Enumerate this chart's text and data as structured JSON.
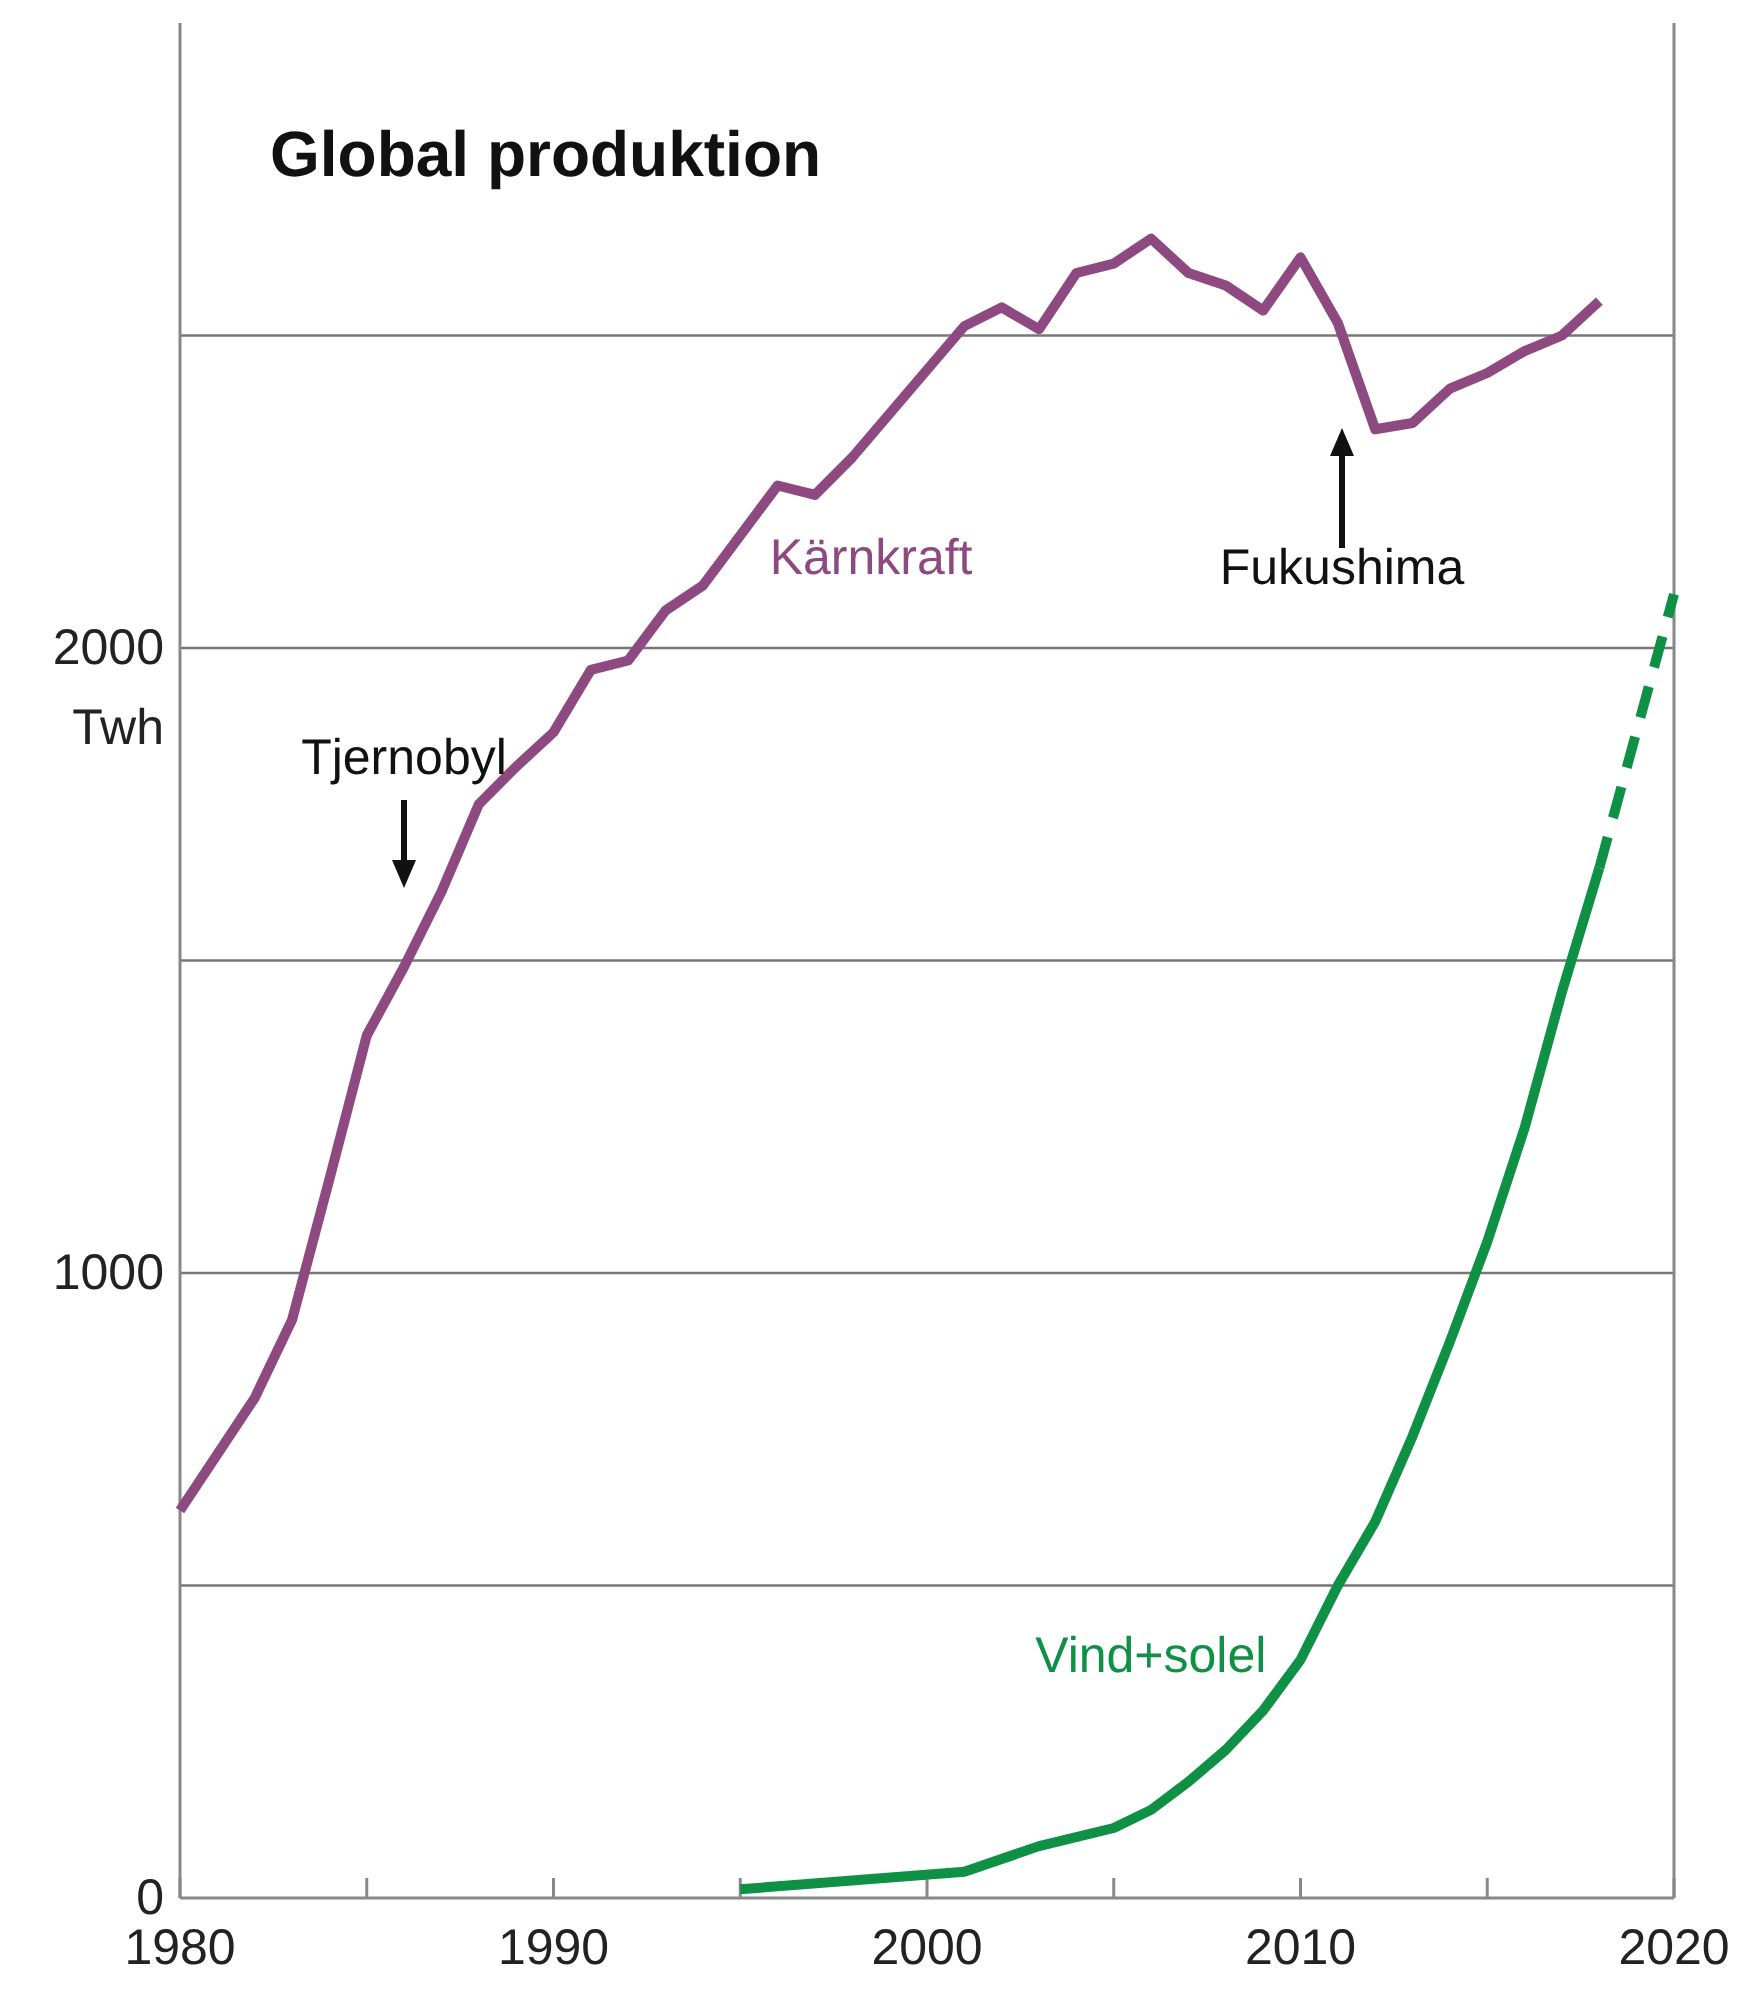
{
  "chart_data": {
    "type": "line",
    "title": "Global produktion",
    "ylabel": "Twh",
    "xlim": [
      1980,
      2020
    ],
    "xticks": [
      1980,
      {
        "value": 1985,
        "label": null
      },
      1990,
      {
        "value": 1995,
        "label": null
      },
      2000,
      {
        "value": 2005,
        "label": null
      },
      2010,
      {
        "value": 2015,
        "label": null
      },
      2020
    ],
    "ylim": [
      0,
      3000
    ],
    "yticks": [
      0,
      {
        "value": 500,
        "label": null
      },
      1000,
      {
        "value": 1500,
        "label": null
      },
      2000,
      {
        "value": 2500,
        "label": null
      }
    ],
    "grid": "y",
    "marker": "none",
    "series": [
      {
        "name": "Kärnkraft",
        "color": "#8e4a80",
        "line_style": "solid",
        "x": [
          1980,
          1981,
          1982,
          1983,
          1984,
          1985,
          1986,
          1987,
          1988,
          1989,
          1990,
          1991,
          1992,
          1993,
          1994,
          1996,
          1997,
          1998,
          1999,
          2000,
          2001,
          2002,
          2003,
          2004,
          2005,
          2006,
          2007,
          2008,
          2009,
          2010,
          2011,
          2012,
          2013,
          2014,
          2015,
          2016,
          2017,
          2018
        ],
        "values": [
          620,
          710,
          800,
          925,
          1150,
          1380,
          1490,
          1610,
          1750,
          1810,
          1865,
          1965,
          1980,
          2060,
          2100,
          2260,
          2245,
          2305,
          2375,
          2445,
          2515,
          2545,
          2510,
          2600,
          2615,
          2655,
          2600,
          2580,
          2540,
          2625,
          2520,
          2350,
          2360,
          2415,
          2440,
          2475,
          2500,
          2555
        ]
      },
      {
        "name": "Vind+solel",
        "color": "#0f9145",
        "line_style": "solid",
        "x": [
          1995,
          2001,
          2003,
          2005,
          2006,
          2007,
          2008,
          2009,
          2010,
          2011,
          2012,
          2013,
          2014,
          2015,
          2016,
          2017,
          2018
        ],
        "values": [
          14,
          42,
          83,
          112,
          141,
          186,
          237,
          300,
          381,
          500,
          602,
          739,
          890,
          1050,
          1232,
          1450,
          1648
        ]
      },
      {
        "color": "#0f9145",
        "line_style": "dashed",
        "x": [
          2018,
          2020
        ],
        "values": [
          1648,
          2086
        ]
      }
    ],
    "annotations": [
      "Tjernobyl",
      "Fukushima"
    ]
  }
}
